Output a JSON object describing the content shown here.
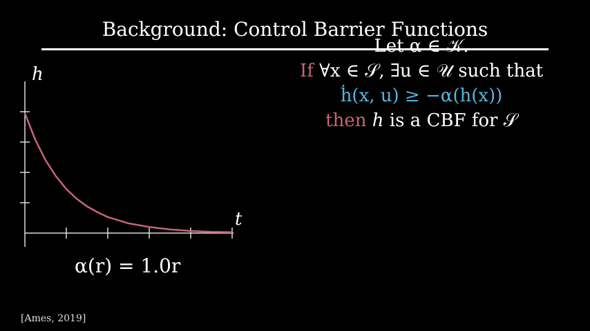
{
  "title": "Background: Control Barrier Functions",
  "theorem": {
    "let_line": "Let α ∈ 𝒦.",
    "if_word": "If",
    "if_rest": " ∀x ∈ 𝒮, ∃u ∈ 𝒰 such that",
    "condition": "ḣ(x, u) ≥ −α(h(x))",
    "then_word": "then",
    "h_symbol": "h",
    "then_rest": " is a CBF for 𝒮"
  },
  "plot": {
    "y_axis_label": "h",
    "x_axis_label": "t"
  },
  "alpha_eq": "α(r) = 1.0r",
  "citation": "[Ames, 2019]",
  "colors": {
    "red": "#c86478",
    "blue": "#58b4dc",
    "background": "#000000"
  },
  "chart_data": {
    "type": "line",
    "title": "",
    "xlabel": "t",
    "ylabel": "h",
    "x_ticks": 5,
    "y_ticks": 4,
    "xlim": [
      0,
      5
    ],
    "ylim": [
      0,
      4
    ],
    "series": [
      {
        "color": "#c86478",
        "x": [
          0,
          0.25,
          0.5,
          0.75,
          1,
          1.25,
          1.5,
          1.75,
          2,
          2.5,
          3,
          3.5,
          4,
          4.5,
          5
        ],
        "y": [
          3.95,
          3.08,
          2.4,
          1.87,
          1.45,
          1.13,
          0.88,
          0.69,
          0.53,
          0.32,
          0.2,
          0.12,
          0.07,
          0.04,
          0.03
        ]
      }
    ]
  }
}
